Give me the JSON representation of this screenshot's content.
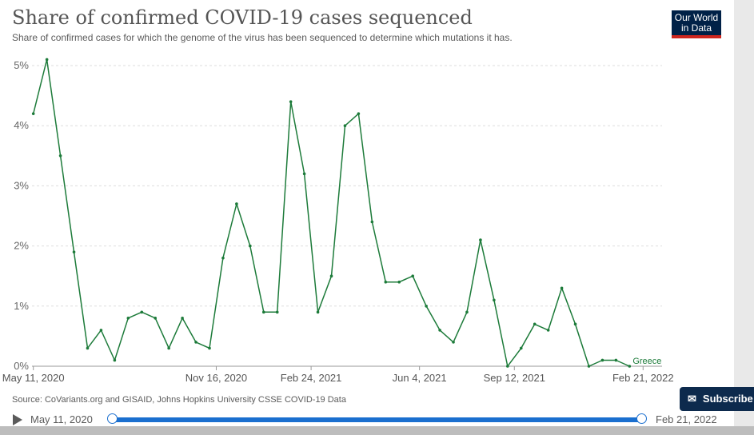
{
  "header": {
    "title": "Share of confirmed COVID-19 cases sequenced",
    "subtitle": "Share of confirmed cases for which the genome of the virus has been sequenced to determine which mutations it has.",
    "logo_line1": "Our World",
    "logo_line2": "in Data"
  },
  "footer": {
    "source": "Source: CoVariants.org and GISAID, Johns Hopkins University CSSE COVID-19 Data",
    "subscribe_label": "Subscribe"
  },
  "timeline": {
    "start_label": "May 11, 2020",
    "end_label": "Feb 21, 2022"
  },
  "colors": {
    "series": "#1d7b3a",
    "grid": "#dddddd",
    "brand": "#002147",
    "accent": "#1a6fcf"
  },
  "chart_data": {
    "type": "line",
    "title": "Share of confirmed COVID-19 cases sequenced",
    "subtitle": "Share of confirmed cases for which the genome of the virus has been sequenced to determine which mutations it has.",
    "xlabel": "",
    "ylabel": "",
    "ylim": [
      0,
      5
    ],
    "y_ticks": [
      0,
      1,
      2,
      3,
      4,
      5
    ],
    "y_tick_labels": [
      "0%",
      "1%",
      "2%",
      "3%",
      "4%",
      "5%"
    ],
    "x_tick_labels": [
      {
        "label": "May 11, 2020",
        "index": 0
      },
      {
        "label": "Nov 16, 2020",
        "index": 13.5
      },
      {
        "label": "Feb 24, 2021",
        "index": 20.5
      },
      {
        "label": "Jun 4, 2021",
        "index": 28.5
      },
      {
        "label": "Sep 12, 2021",
        "index": 35.5
      },
      {
        "label": "Feb 21, 2022",
        "index": 45
      }
    ],
    "x_range": [
      -0.1,
      46.4
    ],
    "grid": true,
    "series": [
      {
        "name": "Greece",
        "values": [
          4.2,
          5.1,
          3.5,
          1.9,
          0.3,
          0.6,
          0.1,
          0.8,
          0.9,
          0.8,
          0.3,
          0.8,
          0.4,
          0.3,
          1.8,
          2.7,
          2.0,
          0.9,
          0.9,
          4.4,
          3.2,
          0.9,
          1.5,
          4.0,
          4.2,
          2.4,
          1.4,
          1.4,
          1.5,
          1.0,
          0.6,
          0.4,
          0.9,
          2.1,
          1.1,
          0.0,
          0.3,
          0.7,
          0.6,
          1.3,
          0.7,
          0.0,
          0.1,
          0.1,
          0.0
        ]
      }
    ]
  }
}
